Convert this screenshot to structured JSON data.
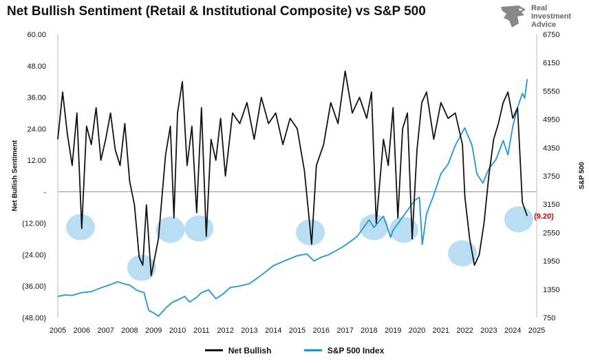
{
  "title": "Net Bullish Sentiment (Retail & Institutional Composite) vs S&P 500",
  "brand": {
    "line1": "Real",
    "line2": "Investment",
    "line3": "Advice",
    "logo": "eagle-head-icon"
  },
  "colors": {
    "net_bullish": "#111111",
    "sp500": "#1f96d3",
    "circle": "#b9def3",
    "annotation": "#cc0000"
  },
  "chart_data": {
    "type": "line",
    "xlim": [
      2005,
      2025
    ],
    "x_ticks": [
      "2005",
      "2006",
      "2007",
      "2008",
      "2009",
      "2010",
      "2011",
      "2012",
      "2013",
      "2014",
      "2015",
      "2016",
      "2017",
      "2018",
      "2019",
      "2020",
      "2021",
      "2022",
      "2023",
      "2024",
      "2025"
    ],
    "y_left": {
      "label": "Net Bullish Sentiment",
      "range": [
        -48,
        60
      ],
      "ticks": [
        "60.00",
        "48.00",
        "36.00",
        "24.00",
        "12.00",
        "-",
        "(12.00)",
        "(24.00)",
        "(36.00)",
        "(48.00)"
      ]
    },
    "y_right": {
      "label": "S&P 500",
      "range": [
        750,
        6750
      ],
      "ticks": [
        "6750",
        "6150",
        "5550",
        "4950",
        "4350",
        "3750",
        "3150",
        "2550",
        "1950",
        "1350",
        "750"
      ]
    },
    "series": [
      {
        "name": "Net Bullish",
        "axis": "left",
        "x": [
          2005.0,
          2005.2,
          2005.4,
          2005.6,
          2005.8,
          2006.0,
          2006.2,
          2006.4,
          2006.6,
          2006.8,
          2007.0,
          2007.2,
          2007.4,
          2007.6,
          2007.8,
          2008.0,
          2008.2,
          2008.4,
          2008.55,
          2008.7,
          2008.9,
          2009.2,
          2009.5,
          2009.7,
          2009.85,
          2010.0,
          2010.2,
          2010.4,
          2010.6,
          2010.8,
          2011.0,
          2011.2,
          2011.4,
          2011.6,
          2011.8,
          2012.0,
          2012.3,
          2012.6,
          2012.9,
          2013.2,
          2013.5,
          2013.8,
          2014.1,
          2014.4,
          2014.7,
          2015.0,
          2015.3,
          2015.6,
          2015.8,
          2016.1,
          2016.4,
          2016.7,
          2017.0,
          2017.3,
          2017.6,
          2017.9,
          2018.1,
          2018.3,
          2018.6,
          2018.8,
          2019.0,
          2019.2,
          2019.4,
          2019.6,
          2019.8,
          2020.0,
          2020.2,
          2020.4,
          2020.7,
          2021.0,
          2021.3,
          2021.6,
          2021.9,
          2022.0,
          2022.2,
          2022.4,
          2022.6,
          2022.8,
          2023.0,
          2023.2,
          2023.4,
          2023.6,
          2023.8,
          2024.0,
          2024.2,
          2024.4,
          2024.6
        ],
        "values": [
          20,
          38,
          22,
          10,
          30,
          -14,
          25,
          18,
          32,
          12,
          20,
          30,
          16,
          10,
          26,
          4,
          -5,
          -25,
          -28,
          -5,
          -32,
          -18,
          14,
          25,
          -10,
          30,
          42,
          10,
          25,
          -8,
          32,
          -17,
          20,
          12,
          28,
          6,
          30,
          26,
          34,
          20,
          36,
          26,
          30,
          18,
          28,
          24,
          8,
          -20,
          10,
          18,
          34,
          26,
          46,
          30,
          36,
          28,
          38,
          -12,
          20,
          10,
          32,
          -10,
          24,
          30,
          -18,
          16,
          34,
          38,
          20,
          34,
          28,
          30,
          18,
          -2,
          -18,
          -28,
          -24,
          -12,
          6,
          20,
          26,
          34,
          38,
          28,
          32,
          -4,
          -9.2
        ]
      },
      {
        "name": "S&P 500 Index",
        "axis": "right",
        "x": [
          2005.0,
          2005.3,
          2005.6,
          2006.0,
          2006.4,
          2006.8,
          2007.2,
          2007.5,
          2007.8,
          2008.0,
          2008.3,
          2008.6,
          2008.8,
          2009.0,
          2009.2,
          2009.5,
          2009.8,
          2010.0,
          2010.3,
          2010.5,
          2010.8,
          2011.0,
          2011.3,
          2011.6,
          2011.9,
          2012.2,
          2012.6,
          2013.0,
          2013.5,
          2014.0,
          2014.5,
          2015.0,
          2015.4,
          2015.7,
          2016.0,
          2016.3,
          2016.7,
          2017.0,
          2017.5,
          2018.0,
          2018.2,
          2018.6,
          2018.9,
          2019.0,
          2019.5,
          2019.9,
          2020.1,
          2020.22,
          2020.4,
          2020.7,
          2021.0,
          2021.3,
          2021.6,
          2021.99,
          2022.3,
          2022.5,
          2022.75,
          2023.0,
          2023.3,
          2023.6,
          2023.8,
          2024.0,
          2024.2,
          2024.4,
          2024.5,
          2024.6
        ],
        "values": [
          1200,
          1230,
          1220,
          1280,
          1300,
          1380,
          1450,
          1510,
          1460,
          1440,
          1330,
          1280,
          900,
          850,
          780,
          950,
          1080,
          1120,
          1200,
          1080,
          1180,
          1280,
          1340,
          1150,
          1250,
          1390,
          1420,
          1470,
          1650,
          1850,
          1960,
          2060,
          2100,
          1950,
          2030,
          2080,
          2190,
          2280,
          2470,
          2820,
          2660,
          2900,
          2450,
          2600,
          2950,
          3230,
          3300,
          2300,
          2950,
          3350,
          3800,
          4000,
          4400,
          4770,
          4400,
          3800,
          3600,
          3900,
          4100,
          4500,
          4200,
          4800,
          5200,
          5500,
          5400,
          5800
        ]
      }
    ],
    "annotation": {
      "text": "(9.20)",
      "x": 2024.6,
      "y": -9.2
    },
    "highlight_circles": [
      {
        "x": 2005.95,
        "y": -13.5
      },
      {
        "x": 2008.5,
        "y": -29.0
      },
      {
        "x": 2009.7,
        "y": -14.5
      },
      {
        "x": 2010.9,
        "y": -14.0
      },
      {
        "x": 2015.55,
        "y": -15.5
      },
      {
        "x": 2018.2,
        "y": -13.5
      },
      {
        "x": 2019.45,
        "y": -14.5
      },
      {
        "x": 2021.9,
        "y": -23.5
      },
      {
        "x": 2024.25,
        "y": -10.5
      }
    ],
    "legend": {
      "position": "bottom"
    }
  }
}
